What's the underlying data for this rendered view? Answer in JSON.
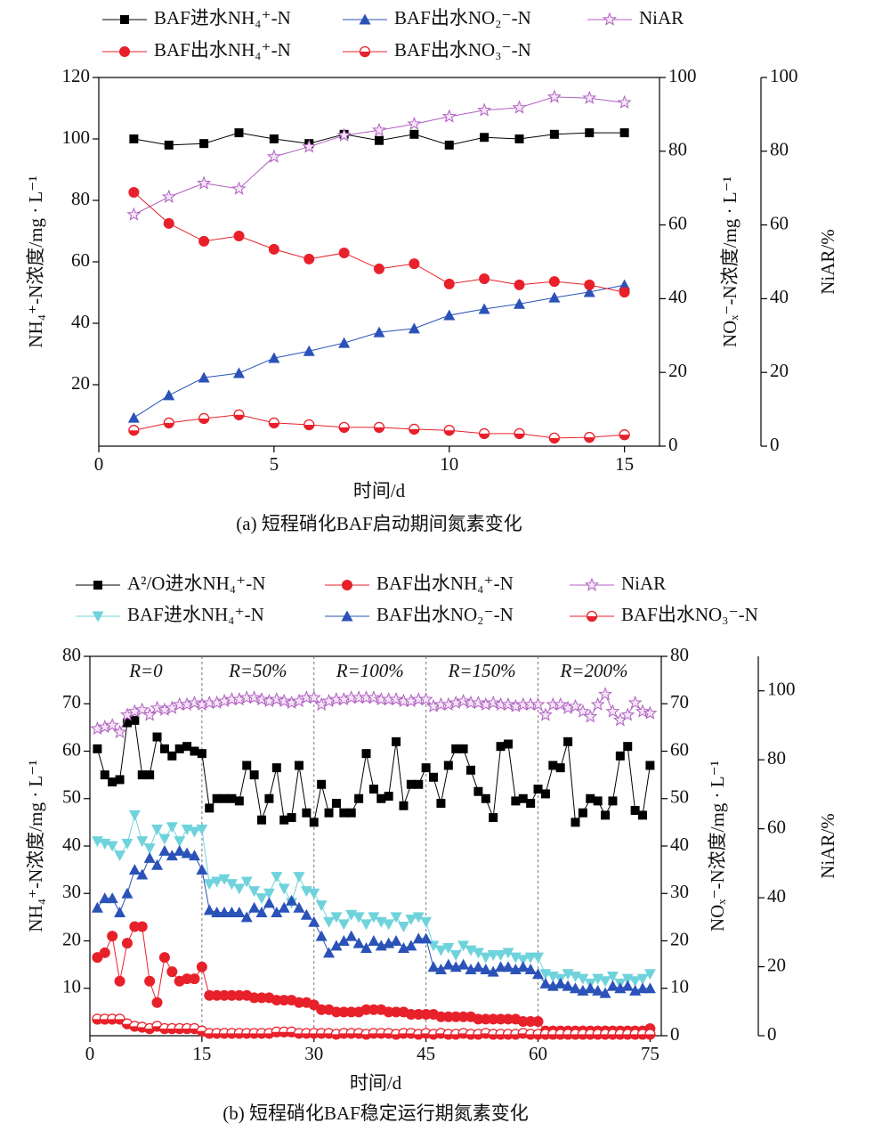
{
  "chart_data": [
    {
      "type": "line",
      "title": "(a) 短程硝化BAF启动期间氮素变化",
      "xlabel": "时间/d",
      "ylabel": "NH₄⁺-N浓度/mg · L⁻¹",
      "y2label": "NOₓ⁻-N浓度/mg · L⁻¹",
      "y3label": "NiAR/%",
      "x": [
        1,
        2,
        3,
        4,
        5,
        6,
        7,
        8,
        9,
        10,
        11,
        12,
        13,
        14,
        15
      ],
      "xlim": [
        0,
        16
      ],
      "xticks": [
        0,
        5,
        10,
        15
      ],
      "ylim": [
        0,
        120
      ],
      "yticks": [
        20,
        40,
        60,
        80,
        100,
        120
      ],
      "y2lim": [
        0,
        100
      ],
      "y2ticks": [
        0,
        20,
        40,
        60,
        80,
        100
      ],
      "y3lim": [
        0,
        100
      ],
      "y3ticks": [
        0,
        20,
        40,
        60,
        80,
        100
      ],
      "legend_columns": 3,
      "series": [
        {
          "name": "BAF进水NH₄⁺-N",
          "color": "#000000",
          "marker": "square",
          "axis": "y",
          "values": [
            100,
            98,
            98.5,
            102,
            100,
            98.5,
            101.5,
            99.5,
            101.5,
            98,
            100.5,
            100,
            101.5,
            102,
            102
          ]
        },
        {
          "name": "BAF出水NO₂⁻-N",
          "color": "#2a52b8",
          "marker": "triangle-up",
          "axis": "y2",
          "values": [
            7.7,
            13.8,
            18.6,
            19.8,
            23.9,
            25.8,
            28,
            30.9,
            31.9,
            35.5,
            37.2,
            38.6,
            40.3,
            41.8,
            43.7
          ]
        },
        {
          "name": "NiAR",
          "color": "#b060c0",
          "marker": "star",
          "axis": "y3",
          "values": [
            62.8,
            67.6,
            71.3,
            69.8,
            78.5,
            81.2,
            84.3,
            85.7,
            87.4,
            89.4,
            91.1,
            91.8,
            94.7,
            94.4,
            93.2
          ]
        },
        {
          "name": "BAF出水NH₄⁺-N",
          "color": "#e8202a",
          "marker": "circle",
          "axis": "y",
          "values": [
            82.6,
            72.5,
            66.7,
            68.4,
            64.1,
            60.9,
            62.9,
            57.7,
            59.4,
            52.8,
            54.5,
            52.5,
            53.6,
            52.5,
            50.1
          ]
        },
        {
          "name": "BAF出水NO₃⁻-N",
          "color": "#e8202a",
          "marker": "half",
          "axis": "y2",
          "values": [
            4.3,
            6.3,
            7.5,
            8.5,
            6.3,
            5.8,
            5.1,
            5.1,
            4.6,
            4.3,
            3.4,
            3.4,
            2.2,
            2.4,
            3.1
          ]
        }
      ]
    },
    {
      "type": "line",
      "title": "(b) 短程硝化BAF稳定运行期氮素变化",
      "xlabel": "时间/d",
      "ylabel": "NH₄⁺-N浓度/mg · L⁻¹",
      "y2label": "NOₓ⁻-N浓度/mg · L⁻¹",
      "y3label": "NiAR/%",
      "x": [
        1,
        2,
        3,
        4,
        5,
        6,
        7,
        8,
        9,
        10,
        11,
        12,
        13,
        14,
        15,
        16,
        17,
        18,
        19,
        20,
        21,
        22,
        23,
        24,
        25,
        26,
        27,
        28,
        29,
        30,
        31,
        32,
        33,
        34,
        35,
        36,
        37,
        38,
        39,
        40,
        41,
        42,
        43,
        44,
        45,
        46,
        47,
        48,
        49,
        50,
        51,
        52,
        53,
        54,
        55,
        56,
        57,
        58,
        59,
        60,
        61,
        62,
        63,
        64,
        65,
        66,
        67,
        68,
        69,
        70,
        71,
        72,
        73,
        74,
        75
      ],
      "xlim": [
        0,
        76.5
      ],
      "xticks": [
        0,
        15,
        30,
        45,
        60,
        75
      ],
      "ylim": [
        0,
        80
      ],
      "yticks": [
        10,
        20,
        30,
        40,
        50,
        60,
        70,
        80
      ],
      "y2lim": [
        0,
        80
      ],
      "y2ticks": [
        0,
        10,
        20,
        30,
        40,
        50,
        60,
        70,
        80
      ],
      "y3lim": [
        0,
        110
      ],
      "y3ticks": [
        0,
        20,
        40,
        60,
        80,
        100
      ],
      "legend_columns": 3,
      "phase_lines": true,
      "annotations": [
        "R=0",
        "R=50%",
        "R=100%",
        "R=150%",
        "R=200%"
      ],
      "series": [
        {
          "name": "A²/O进水NH₄⁺-N",
          "color": "#000000",
          "marker": "square",
          "axis": "y",
          "values": [
            60.5,
            55,
            53.5,
            54,
            66,
            66.5,
            55,
            55,
            63,
            60.5,
            59,
            60.5,
            61,
            60,
            59.5,
            48,
            50,
            50,
            50,
            49.5,
            57,
            55,
            45.5,
            50,
            56.5,
            45.5,
            46,
            57,
            47,
            45,
            53,
            47,
            49,
            47,
            47,
            50,
            59.5,
            52,
            50,
            50.5,
            62,
            48.5,
            53,
            53,
            56.5,
            54.5,
            49,
            57,
            60.5,
            60.5,
            56,
            51.5,
            50,
            46,
            61,
            61.5,
            49.5,
            50,
            49,
            52,
            51,
            57,
            56.5,
            62,
            45,
            47,
            50,
            49.5,
            46.5,
            49.5,
            59,
            61,
            47.5,
            46.5,
            57
          ]
        },
        {
          "name": "BAF出水NH₄⁺-N",
          "color": "#e8202a",
          "marker": "circle",
          "axis": "y",
          "values": [
            16.5,
            17.5,
            21,
            11.5,
            19.5,
            23,
            23,
            11.5,
            7,
            16.5,
            13.5,
            11.5,
            12,
            12,
            14.5,
            8.5,
            8.5,
            8.5,
            8.5,
            8.5,
            8.5,
            8,
            8,
            8,
            7.5,
            7.5,
            7.5,
            7,
            7,
            6.5,
            5.5,
            5.5,
            5,
            5,
            5,
            5,
            5.5,
            5.5,
            5.5,
            5,
            5,
            5,
            4.5,
            4.5,
            4.5,
            4.5,
            4,
            4,
            4,
            4,
            4,
            3.5,
            3.5,
            3.5,
            3.5,
            3.5,
            3.5,
            3,
            3,
            3,
            1,
            1,
            1,
            1,
            1,
            1,
            1,
            1,
            1,
            1,
            1,
            1,
            1,
            1,
            1.5
          ]
        },
        {
          "name": "NiAR",
          "color": "#b060c0",
          "marker": "star",
          "axis": "y3",
          "values": [
            89,
            89.5,
            90,
            88,
            93,
            94,
            94.5,
            93,
            95,
            94.5,
            95,
            96,
            96,
            96.5,
            96,
            96.5,
            96.5,
            97,
            97.5,
            97.5,
            98,
            98,
            97.5,
            97,
            97.5,
            97,
            96.5,
            97,
            98,
            98,
            96,
            97,
            97.5,
            97.5,
            98,
            98,
            98,
            98,
            97.5,
            97.5,
            97.5,
            97,
            97,
            97.5,
            97.5,
            95.5,
            96,
            96,
            96.5,
            97,
            96.5,
            96.5,
            96,
            96.5,
            96,
            96,
            95.5,
            96,
            96,
            96,
            93,
            96,
            96,
            95,
            95.5,
            94,
            92.5,
            96,
            99,
            94,
            91.5,
            93,
            96.5,
            94,
            93.5
          ]
        },
        {
          "name": "BAF进水NH₄⁺-N",
          "color": "#6fd3dc",
          "marker": "triangle-down",
          "axis": "y",
          "values": [
            41,
            40.5,
            40,
            38,
            40.5,
            46.5,
            41,
            39.5,
            43.5,
            41.5,
            44,
            41,
            43.5,
            43,
            43.5,
            32,
            32.5,
            33,
            32,
            31,
            32.5,
            30.5,
            29,
            30,
            33.5,
            31,
            28,
            33.5,
            30.5,
            30,
            27.5,
            24,
            25,
            23.5,
            25.5,
            25,
            23.5,
            25,
            24,
            23.5,
            25,
            23,
            24.5,
            25,
            24,
            19,
            18,
            18.5,
            17,
            19,
            18,
            17.5,
            16.5,
            17,
            17,
            17.5,
            16.5,
            16,
            16.5,
            16.5,
            13,
            12.5,
            12,
            13,
            12.5,
            12,
            11,
            12,
            11.5,
            12.5,
            11,
            12,
            11.5,
            12,
            13
          ]
        },
        {
          "name": "BAF出水NO₂⁻-N",
          "color": "#2a52b8",
          "marker": "triangle-up",
          "axis": "y2",
          "values": [
            27,
            29,
            29,
            26,
            30,
            35,
            34,
            37.5,
            36,
            39,
            38,
            39,
            38.5,
            38,
            35,
            26.5,
            26,
            26,
            26,
            26,
            25,
            27,
            26,
            28,
            26,
            27,
            28.5,
            27,
            25.5,
            24,
            21,
            17.5,
            19,
            20,
            21,
            19.5,
            18.5,
            20,
            19,
            19.5,
            20,
            18.5,
            19,
            20.5,
            20.5,
            14.5,
            14,
            15,
            14.5,
            15,
            14,
            14.5,
            14,
            13.5,
            14.5,
            14.5,
            14,
            14.5,
            14,
            13,
            11,
            10.5,
            11,
            10.5,
            10,
            9.5,
            10,
            9.5,
            9,
            10.5,
            10,
            10.5,
            9.5,
            10,
            10
          ]
        },
        {
          "name": "BAF出水NO₃⁻-N",
          "color": "#e8202a",
          "marker": "half",
          "axis": "y2",
          "values": [
            3.5,
            3.5,
            3.5,
            3.5,
            2.5,
            2,
            1.8,
            1.5,
            2,
            1.5,
            1.5,
            1.5,
            1.5,
            1.5,
            1,
            0.5,
            0.5,
            0.5,
            0.5,
            0.5,
            0.5,
            0.5,
            0.5,
            0.5,
            0.8,
            0.8,
            0.8,
            0.5,
            0.5,
            0.5,
            0.5,
            0.5,
            0.3,
            0.5,
            0.5,
            0.5,
            0.3,
            0.5,
            0.5,
            0.5,
            0.3,
            0.5,
            0.5,
            0.3,
            0.5,
            0.3,
            0.5,
            0.3,
            0.3,
            0.5,
            0.3,
            0.3,
            0.5,
            0.3,
            0.3,
            0.3,
            0.3,
            0.5,
            0.3,
            0.3,
            0.3,
            0.3,
            0.3,
            0.3,
            0.3,
            0.3,
            0.3,
            0.3,
            0.3,
            0.3,
            0.3,
            0.3,
            0.3,
            0.3,
            0.3
          ]
        }
      ]
    }
  ]
}
